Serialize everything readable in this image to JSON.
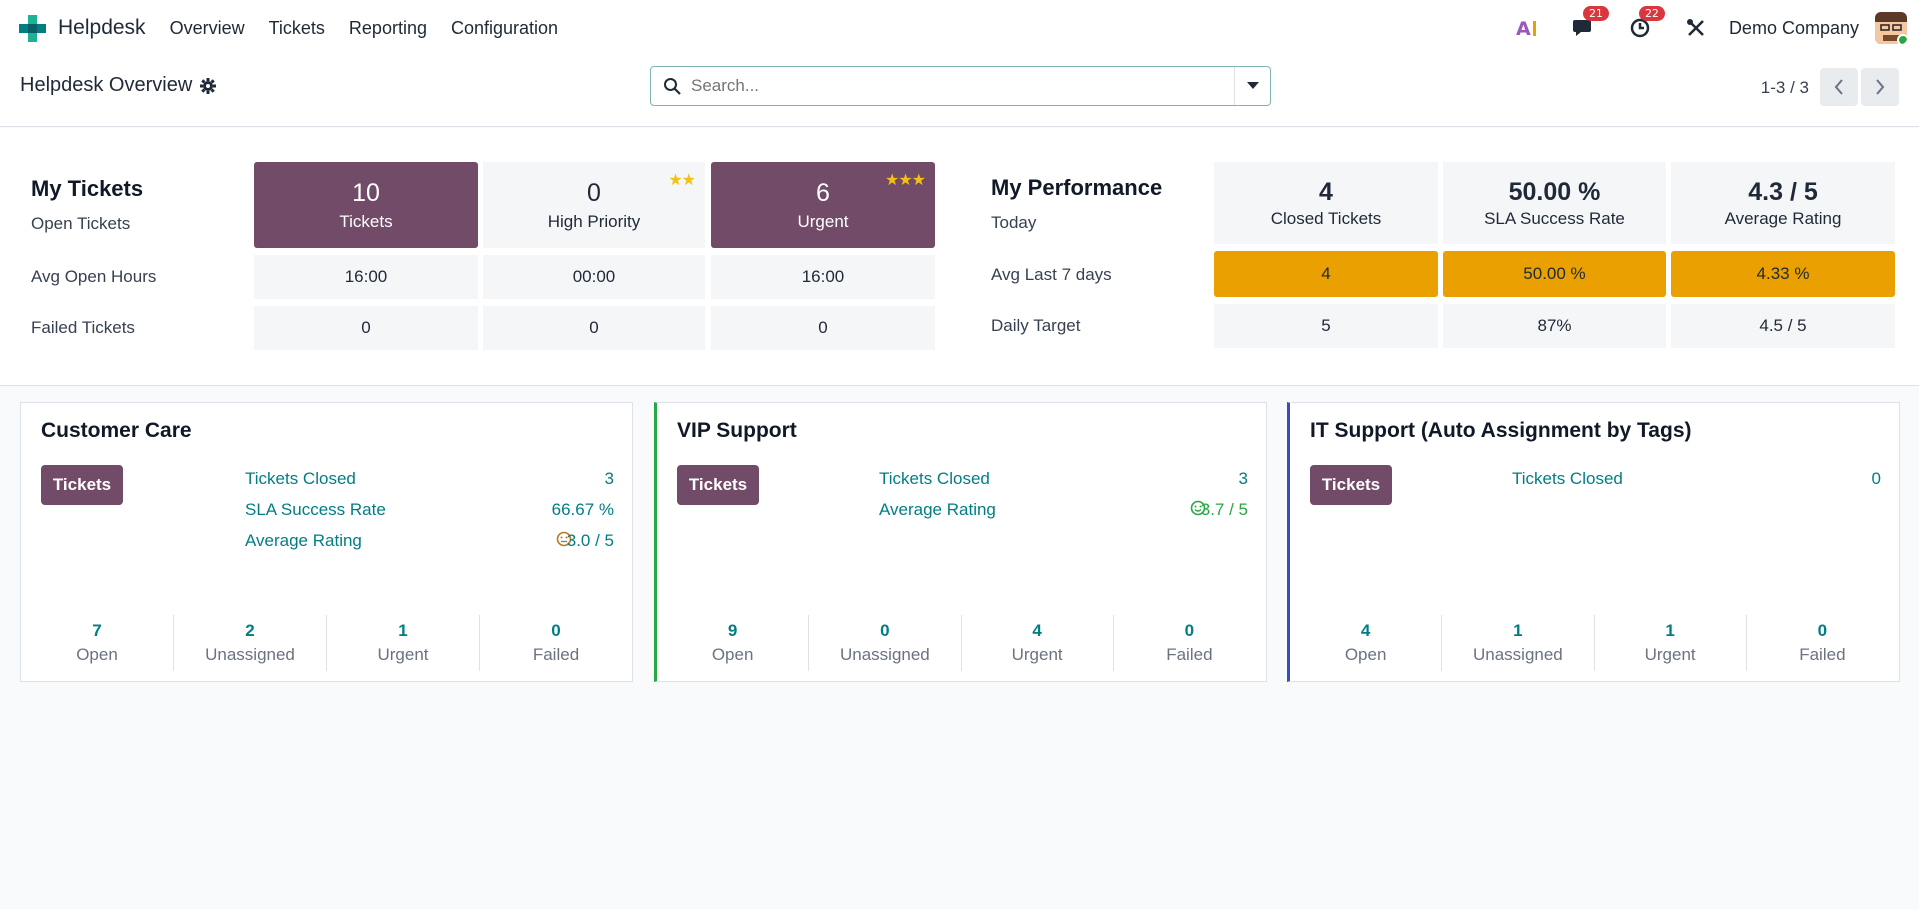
{
  "navbar": {
    "app_name": "Helpdesk",
    "menu": [
      "Overview",
      "Tickets",
      "Reporting",
      "Configuration"
    ],
    "messages_badge": "21",
    "activities_badge": "22",
    "company": "Demo Company"
  },
  "control": {
    "title": "Helpdesk Overview",
    "search_placeholder": "Search...",
    "pager": "1-3 / 3"
  },
  "my_tickets": {
    "title": "My Tickets",
    "rows": [
      "Open Tickets",
      "Avg Open Hours",
      "Failed Tickets"
    ],
    "columns": [
      {
        "count": "10",
        "label": "Tickets",
        "avg_hours": "16:00",
        "failed": "0",
        "stars": ""
      },
      {
        "count": "0",
        "label": "High Priority",
        "avg_hours": "00:00",
        "failed": "0",
        "stars": "★★"
      },
      {
        "count": "6",
        "label": "Urgent",
        "avg_hours": "16:00",
        "failed": "0",
        "stars": "★★★"
      }
    ]
  },
  "my_performance": {
    "title": "My Performance",
    "rows": [
      "Today",
      "Avg Last 7 days",
      "Daily Target"
    ],
    "columns": [
      {
        "today": "4",
        "label": "Closed Tickets",
        "avg7": "4",
        "target": "5"
      },
      {
        "today": "50.00 %",
        "label": "SLA Success Rate",
        "avg7": "50.00 %",
        "target": "87%"
      },
      {
        "today": "4.3 / 5",
        "label": "Average Rating",
        "avg7": "4.33 %",
        "target": "4.5 / 5"
      }
    ]
  },
  "teams": [
    {
      "name": "Customer Care",
      "button": "Tickets",
      "stats": [
        {
          "label": "Tickets Closed",
          "value": "3"
        },
        {
          "label": "SLA Success Rate",
          "value": "66.67 %"
        },
        {
          "label": "Average Rating",
          "value": "3.0 / 5"
        }
      ],
      "bottom": [
        {
          "num": "7",
          "label": "Open"
        },
        {
          "num": "2",
          "label": "Unassigned"
        },
        {
          "num": "1",
          "label": "Urgent"
        },
        {
          "num": "0",
          "label": "Failed"
        }
      ]
    },
    {
      "name": "VIP Support",
      "button": "Tickets",
      "stats": [
        {
          "label": "Tickets Closed",
          "value": "3"
        },
        {
          "label": "Average Rating",
          "value": "3.7 / 5"
        }
      ],
      "bottom": [
        {
          "num": "9",
          "label": "Open"
        },
        {
          "num": "0",
          "label": "Unassigned"
        },
        {
          "num": "4",
          "label": "Urgent"
        },
        {
          "num": "0",
          "label": "Failed"
        }
      ]
    },
    {
      "name": "IT Support (Auto Assignment by Tags)",
      "button": "Tickets",
      "stats": [
        {
          "label": "Tickets Closed",
          "value": "0"
        }
      ],
      "bottom": [
        {
          "num": "4",
          "label": "Open"
        },
        {
          "num": "1",
          "label": "Unassigned"
        },
        {
          "num": "1",
          "label": "Urgent"
        },
        {
          "num": "0",
          "label": "Failed"
        }
      ]
    }
  ],
  "colors": {
    "brand_purple": "#714b67",
    "teal": "#017e84",
    "amber": "#e9a000",
    "vip_border": "#28a745",
    "it_border": "#3b4cc0"
  }
}
